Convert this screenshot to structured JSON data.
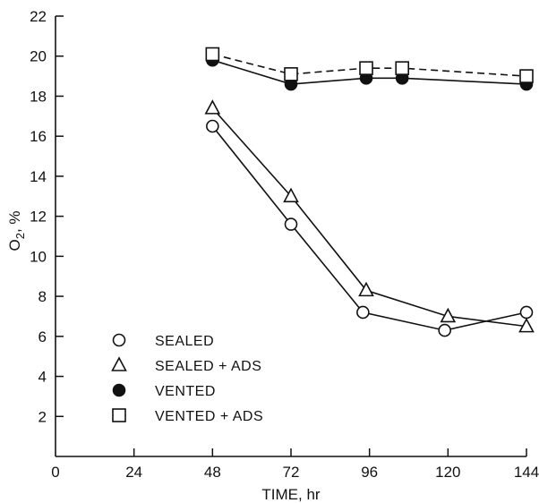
{
  "chart_data": {
    "type": "line",
    "title": "",
    "xlabel": "TIME, hr",
    "ylabel": "O2, %",
    "xlim": [
      0,
      144
    ],
    "ylim": [
      0,
      22
    ],
    "xticks": [
      0,
      24,
      48,
      72,
      96,
      120,
      144
    ],
    "yticks": [
      2,
      4,
      6,
      8,
      10,
      12,
      14,
      16,
      18,
      20,
      22
    ],
    "grid": false,
    "legend_position": "lower-left",
    "series": [
      {
        "name": "SEALED",
        "marker": "open-circle",
        "line_style": "solid",
        "x": [
          48,
          72,
          94,
          119,
          144
        ],
        "y": [
          16.5,
          11.6,
          7.2,
          6.3,
          7.2
        ]
      },
      {
        "name": "SEALED + ADS",
        "marker": "open-triangle",
        "line_style": "solid",
        "x": [
          48,
          72,
          95,
          120,
          144
        ],
        "y": [
          17.4,
          13.0,
          8.3,
          7.0,
          6.5
        ]
      },
      {
        "name": "VENTED",
        "marker": "filled-circle",
        "line_style": "solid",
        "x": [
          48,
          72,
          95,
          106,
          144
        ],
        "y": [
          19.8,
          18.6,
          18.9,
          18.9,
          18.6
        ]
      },
      {
        "name": "VENTED + ADS",
        "marker": "open-square",
        "line_style": "dashed",
        "x": [
          48,
          72,
          95,
          106,
          144
        ],
        "y": [
          20.1,
          19.1,
          19.4,
          19.4,
          19.0
        ]
      }
    ]
  }
}
